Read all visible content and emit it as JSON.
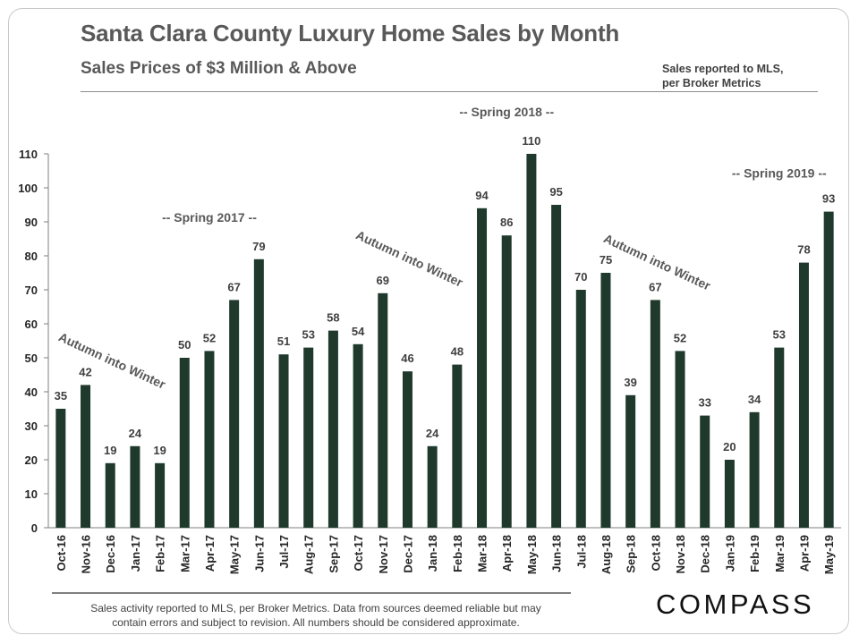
{
  "header": {
    "title": "Santa Clara County Luxury Home Sales by Month",
    "subtitle": "Sales Prices of $3 Million  & Above",
    "source_note_line1": "Sales reported to MLS,",
    "source_note_line2": "per Broker Metrics"
  },
  "footer": {
    "disclaimer_line1": "Sales activity reported to MLS, per Broker Metrics. Data from sources deemed reliable but may",
    "disclaimer_line2": "contain errors and subject to revision.  All numbers should be considered approximate.",
    "logo_text": "COMPASS"
  },
  "chart_data": {
    "type": "bar",
    "categories": [
      "Oct-16",
      "Nov-16",
      "Dec-16",
      "Jan-17",
      "Feb-17",
      "Mar-17",
      "Apr-17",
      "May-17",
      "Jun-17",
      "Jul-17",
      "Aug-17",
      "Sep-17",
      "Oct-17",
      "Nov-17",
      "Dec-17",
      "Jan-18",
      "Feb-18",
      "Mar-18",
      "Apr-18",
      "May-18",
      "Jun-18",
      "Jul-18",
      "Aug-18",
      "Sep-18",
      "Oct-18",
      "Nov-18",
      "Dec-18",
      "Jan-19",
      "Feb-19",
      "Mar-19",
      "Apr-19",
      "May-19"
    ],
    "values": [
      35,
      42,
      19,
      24,
      19,
      50,
      52,
      67,
      79,
      51,
      53,
      58,
      54,
      69,
      46,
      24,
      48,
      94,
      86,
      110,
      95,
      70,
      75,
      39,
      67,
      52,
      33,
      20,
      34,
      53,
      78,
      93
    ],
    "ylim": [
      0,
      110
    ],
    "yticks": [
      0,
      10,
      20,
      30,
      40,
      50,
      60,
      70,
      80,
      90,
      100,
      110
    ],
    "grid": false,
    "bar_color": "#1f3a2c",
    "annotations": [
      {
        "text": "Autumn into Winter",
        "at_category": "Dec-16",
        "at_value": 48,
        "rotated": true
      },
      {
        "text": "-- Spring 2017 --",
        "at_category": "Apr-17",
        "at_value": 90,
        "rotated": false
      },
      {
        "text": "Autumn into Winter",
        "at_category": "Dec-17",
        "at_value": 78,
        "rotated": true
      },
      {
        "text": "-- Spring 2018 --",
        "at_category": "Apr-18",
        "at_value": 121,
        "rotated": false
      },
      {
        "text": "Autumn into Winter",
        "at_category": "Oct-18",
        "at_value": 77,
        "rotated": true
      },
      {
        "text": "-- Spring 2019 --",
        "at_category": "Mar-19",
        "at_value": 103,
        "rotated": false
      }
    ]
  }
}
